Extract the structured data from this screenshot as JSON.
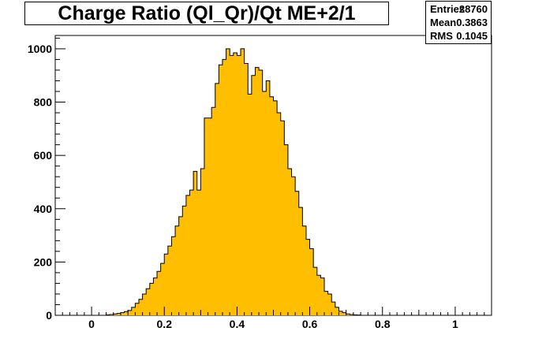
{
  "chart_data": {
    "type": "bar",
    "title": "Charge Ratio (Ql_Qr)/Qt ME+2/1",
    "xlabel": "",
    "ylabel": "",
    "xlim": [
      -0.1,
      1.1
    ],
    "ylim": [
      0,
      1050
    ],
    "x_ticks": [
      0,
      0.2,
      0.4,
      0.6,
      0.8,
      1
    ],
    "x_tick_labels": [
      "0",
      "0.2",
      "0.4",
      "0.6",
      "0.8",
      "1"
    ],
    "y_ticks": [
      0,
      200,
      400,
      600,
      800,
      1000
    ],
    "y_tick_labels": [
      "0",
      "200",
      "400",
      "600",
      "800",
      "1000"
    ],
    "bin_edges_start": 0.0,
    "bin_width": 0.01,
    "values": [
      0,
      0,
      0,
      0,
      2,
      3,
      5,
      7,
      10,
      14,
      18,
      30,
      45,
      60,
      80,
      100,
      120,
      140,
      165,
      195,
      230,
      260,
      295,
      335,
      370,
      410,
      450,
      470,
      540,
      470,
      550,
      740,
      740,
      780,
      870,
      940,
      960,
      1000,
      975,
      985,
      975,
      1000,
      945,
      830,
      900,
      930,
      920,
      840,
      880,
      820,
      805,
      760,
      730,
      640,
      550,
      520,
      465,
      405,
      335,
      285,
      250,
      180,
      150,
      140,
      90,
      80,
      50,
      30,
      15,
      10,
      5,
      3,
      2,
      1,
      0,
      0,
      0,
      0,
      0,
      0
    ],
    "fill_color": "#ffbf00",
    "line_color": "#000000",
    "grid": false,
    "stats": {
      "entries_label": "Entries",
      "entries_value": "28760",
      "mean_label": "Mean",
      "mean_value": "0.3863",
      "rms_label": "RMS",
      "rms_value": "0.1045"
    }
  }
}
